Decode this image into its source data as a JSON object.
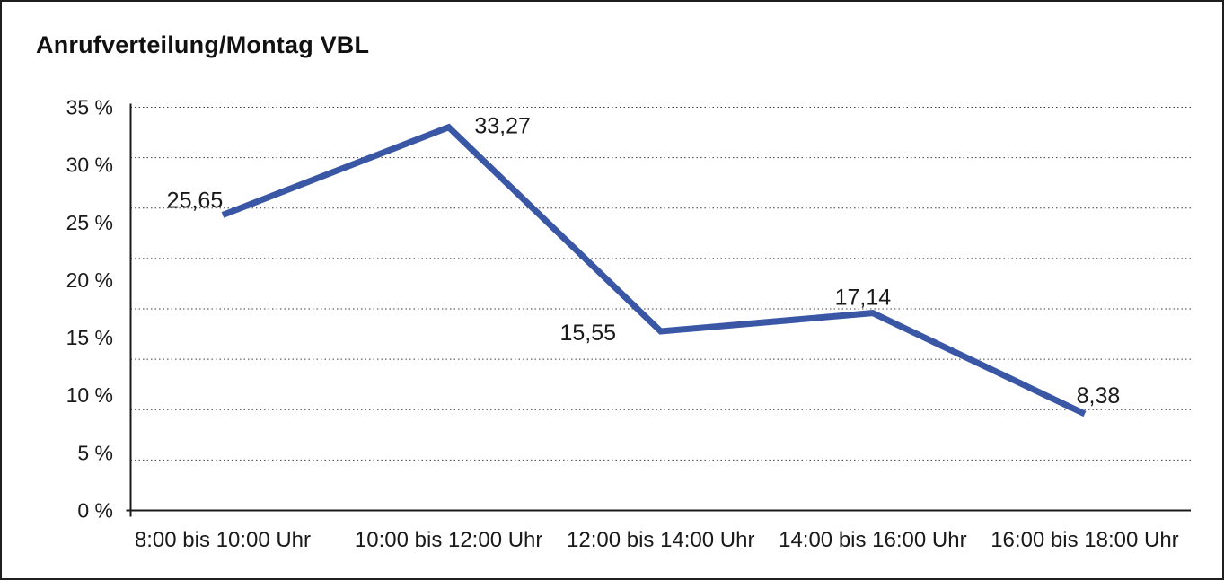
{
  "window": {
    "background": "#ffffff",
    "border_color": "#1f1f1f"
  },
  "header": {
    "title": "Anrufverteilung/Montag VBL"
  },
  "chart_data": {
    "type": "line",
    "title": "Anrufverteilung/Montag VBL",
    "categories": [
      "8:00 bis 10:00 Uhr",
      "10:00 bis 12:00 Uhr",
      "12:00 bis 14:00 Uhr",
      "14:00 bis 16:00 Uhr",
      "16:00 bis 18:00 Uhr"
    ],
    "series": [
      {
        "name": "",
        "values": [
          25.65,
          33.27,
          15.55,
          17.14,
          8.38
        ]
      }
    ],
    "value_labels": [
      "25,65",
      "33,27",
      "15,55",
      "17,14",
      "8,38"
    ],
    "y_tick_labels": [
      "35 %",
      "30 %",
      "25 %",
      "20 %",
      "15 %",
      "10 %",
      "5 %",
      "0 %"
    ],
    "xlabel": "",
    "ylabel": "",
    "ylim": [
      0,
      35
    ],
    "decimal_separator": ",",
    "grid": "horizontal-dotted",
    "gridline_count": 9,
    "legend": "none",
    "line_color": "#3a57a6",
    "axis_color": "#1a1a1a",
    "gridline_color": "#3d3d3d",
    "text_color": "#1a1a1a"
  }
}
